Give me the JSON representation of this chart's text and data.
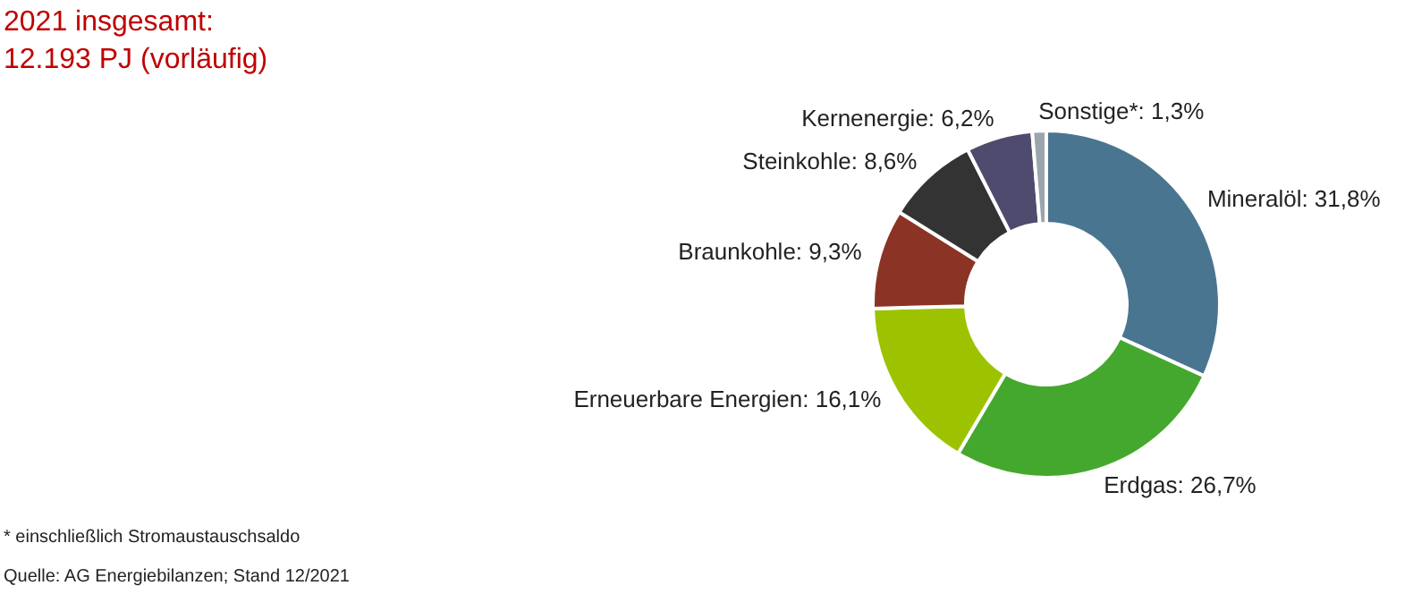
{
  "chart_data": {
    "type": "donut",
    "title": "2021 insgesamt:",
    "subtitle": "12.193 PJ (vorläufig)",
    "categories": [
      "Mineralöl",
      "Erdgas",
      "Erneuerbare Energien",
      "Braunkohle",
      "Steinkohle",
      "Kernenergie",
      "Sonstige*"
    ],
    "values": [
      31.8,
      26.7,
      16.1,
      9.3,
      8.6,
      6.2,
      1.3
    ],
    "value_labels": [
      "31,8%",
      "26,7%",
      "16,1%",
      "9,3%",
      "8,6%",
      "6,2%",
      "1,3%"
    ],
    "colors": [
      "#4a7590",
      "#45a82e",
      "#9dc300",
      "#8b3325",
      "#333333",
      "#4f4b6e",
      "#9aa5ae"
    ],
    "annotations": [
      "* einschließlich Stromaustauschsaldo",
      "Quelle: AG Energiebilanzen; Stand 12/2021"
    ]
  }
}
